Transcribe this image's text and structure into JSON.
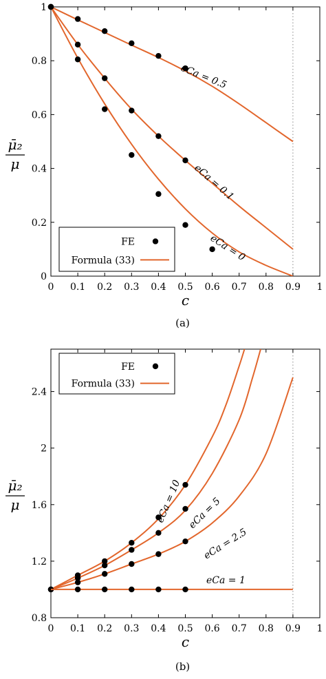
{
  "chart_data": [
    {
      "type": "line",
      "caption": "(a)",
      "xlabel": "c",
      "ylabel_numerator": "μ̄₂",
      "ylabel_denominator": "μ",
      "xlim": [
        0,
        1
      ],
      "ylim": [
        0,
        1
      ],
      "xticks": [
        "0",
        "0.1",
        "0.2",
        "0.3",
        "0.4",
        "0.5",
        "0.6",
        "0.7",
        "0.8",
        "0.9",
        "1"
      ],
      "yticks": [
        "0",
        "0.2",
        "0.4",
        "0.6",
        "0.8",
        "1"
      ],
      "vertical_reference_line_x": 0.9,
      "legend": {
        "placement": "bottom-left",
        "fe_label": "FE",
        "formula_label": "Formula (33)"
      },
      "series": [
        {
          "label": "eCa = 0.5",
          "curve": {
            "x": [
              0,
              0.1,
              0.2,
              0.3,
              0.4,
              0.5,
              0.6,
              0.7,
              0.8,
              0.9
            ],
            "y": [
              1,
              0.952,
              0.905,
              0.858,
              0.812,
              0.762,
              0.705,
              0.64,
              0.57,
              0.5
            ]
          },
          "fe": {
            "x": [
              0,
              0.1,
              0.2,
              0.3,
              0.4,
              0.5
            ],
            "y": [
              1,
              0.955,
              0.91,
              0.865,
              0.818,
              0.772
            ]
          }
        },
        {
          "label": "eCa = 0.1",
          "curve": {
            "x": [
              0,
              0.1,
              0.2,
              0.3,
              0.4,
              0.5,
              0.6,
              0.7,
              0.8,
              0.9
            ],
            "y": [
              1,
              0.86,
              0.735,
              0.62,
              0.52,
              0.43,
              0.345,
              0.26,
              0.18,
              0.1
            ]
          },
          "fe": {
            "x": [
              0,
              0.1,
              0.2,
              0.3,
              0.4,
              0.5
            ],
            "y": [
              1,
              0.86,
              0.735,
              0.615,
              0.52,
              0.43
            ]
          }
        },
        {
          "label": "eCa = 0",
          "curve": {
            "x": [
              0,
              0.1,
              0.2,
              0.3,
              0.4,
              0.5,
              0.6,
              0.7,
              0.8,
              0.9
            ],
            "y": [
              1,
              0.81,
              0.64,
              0.49,
              0.36,
              0.25,
              0.16,
              0.09,
              0.04,
              0.0
            ]
          },
          "fe": {
            "x": [
              0,
              0.1,
              0.2,
              0.3,
              0.4,
              0.5,
              0.6
            ],
            "y": [
              1,
              0.805,
              0.62,
              0.45,
              0.305,
              0.19,
              0.1
            ]
          }
        }
      ]
    },
    {
      "type": "line",
      "caption": "(b)",
      "xlabel": "c",
      "ylabel_numerator": "μ̄₂",
      "ylabel_denominator": "μ",
      "xlim": [
        0,
        1
      ],
      "ylim": [
        0.8,
        2.7
      ],
      "xticks": [
        "0",
        "0.1",
        "0.2",
        "0.3",
        "0.4",
        "0.5",
        "0.6",
        "0.7",
        "0.8",
        "0.9",
        "1"
      ],
      "yticks": [
        "0.8",
        "1.2",
        "1.6",
        "2",
        "2.4"
      ],
      "ytick_values": [
        0.8,
        1.2,
        1.6,
        2.0,
        2.4
      ],
      "vertical_reference_line_x": 0.9,
      "legend": {
        "placement": "top-left",
        "fe_label": "FE",
        "formula_label": "Formula (33)"
      },
      "series": [
        {
          "label": "eCa = 10",
          "curve": {
            "x": [
              0,
              0.1,
              0.2,
              0.3,
              0.4,
              0.5,
              0.6,
              0.65,
              0.7,
              0.72
            ],
            "y": [
              1,
              1.1,
              1.2,
              1.33,
              1.5,
              1.74,
              2.08,
              2.3,
              2.58,
              2.7
            ]
          },
          "fe": {
            "x": [
              0,
              0.1,
              0.2,
              0.3,
              0.4,
              0.5
            ],
            "y": [
              1,
              1.1,
              1.2,
              1.33,
              1.51,
              1.74
            ]
          }
        },
        {
          "label": "eCa = 5",
          "curve": {
            "x": [
              0,
              0.1,
              0.2,
              0.3,
              0.4,
              0.5,
              0.6,
              0.7,
              0.75,
              0.78
            ],
            "y": [
              1,
              1.08,
              1.17,
              1.28,
              1.4,
              1.56,
              1.82,
              2.2,
              2.5,
              2.7
            ]
          },
          "fe": {
            "x": [
              0,
              0.1,
              0.2,
              0.3,
              0.4,
              0.5
            ],
            "y": [
              1,
              1.08,
              1.17,
              1.28,
              1.4,
              1.57
            ]
          }
        },
        {
          "label": "eCa = 2.5",
          "curve": {
            "x": [
              0,
              0.1,
              0.2,
              0.3,
              0.4,
              0.5,
              0.6,
              0.7,
              0.8,
              0.9
            ],
            "y": [
              1,
              1.05,
              1.11,
              1.18,
              1.25,
              1.34,
              1.47,
              1.66,
              1.96,
              2.5
            ]
          },
          "fe": {
            "x": [
              0,
              0.1,
              0.2,
              0.3,
              0.4,
              0.5
            ],
            "y": [
              1,
              1.05,
              1.11,
              1.18,
              1.25,
              1.34
            ]
          }
        },
        {
          "label": "eCa = 1",
          "curve": {
            "x": [
              0,
              0.9
            ],
            "y": [
              1,
              1
            ]
          },
          "fe": {
            "x": [
              0.1,
              0.2,
              0.3,
              0.4,
              0.5
            ],
            "y": [
              1,
              1,
              1,
              1,
              1
            ]
          }
        }
      ]
    }
  ],
  "colors": {
    "curve": "#e2662c",
    "marker": "#000000",
    "refline": "#888888"
  }
}
